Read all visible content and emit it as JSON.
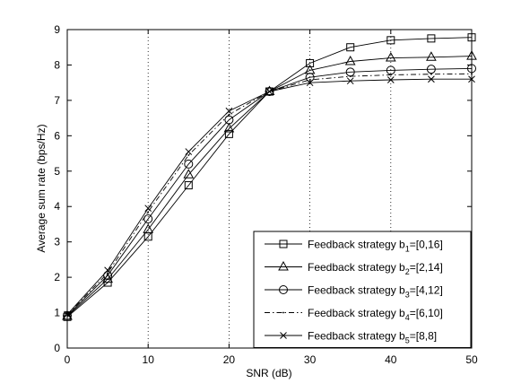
{
  "chart_data": {
    "type": "line",
    "title": "",
    "xlabel": "SNR (dB)",
    "ylabel": "Average sum rate (bps/Hz)",
    "xlim": [
      0,
      50
    ],
    "ylim": [
      0,
      9
    ],
    "xticks": [
      0,
      10,
      20,
      30,
      40,
      50
    ],
    "yticks": [
      0,
      1,
      2,
      3,
      4,
      5,
      6,
      7,
      8,
      9
    ],
    "vertical_dotted_grid_at_x": [
      10,
      20,
      30,
      40
    ],
    "legend_position": "bottom-right",
    "x": [
      0,
      5,
      10,
      15,
      20,
      25,
      30,
      35,
      40,
      45,
      50
    ],
    "series": [
      {
        "label_main": "Feedback strategy b",
        "sub": "1",
        "label_tail": "=[0,16]",
        "marker": "square",
        "line": "solid",
        "values": [
          0.88,
          1.85,
          3.15,
          4.6,
          6.05,
          7.25,
          8.05,
          8.5,
          8.7,
          8.75,
          8.78
        ]
      },
      {
        "label_main": "Feedback strategy b",
        "sub": "2",
        "label_tail": "=[2,14]",
        "marker": "triangle",
        "line": "solid",
        "values": [
          0.9,
          1.95,
          3.35,
          4.9,
          6.2,
          7.25,
          7.85,
          8.1,
          8.2,
          8.22,
          8.25
        ]
      },
      {
        "label_main": "Feedback strategy b",
        "sub": "3",
        "label_tail": "=[4,12]",
        "marker": "circle",
        "line": "solid",
        "values": [
          0.92,
          2.05,
          3.65,
          5.2,
          6.45,
          7.25,
          7.65,
          7.8,
          7.85,
          7.88,
          7.9
        ]
      },
      {
        "label_main": "Feedback strategy b",
        "sub": "4",
        "label_tail": "=[6,10]",
        "marker": "dot",
        "line": "dashdot",
        "values": [
          0.94,
          2.12,
          3.85,
          5.45,
          6.6,
          7.25,
          7.58,
          7.68,
          7.72,
          7.74,
          7.75
        ]
      },
      {
        "label_main": "Feedback strategy b",
        "sub": "5",
        "label_tail": "=[8,8]",
        "marker": "x",
        "line": "solid",
        "values": [
          0.95,
          2.2,
          3.95,
          5.55,
          6.7,
          7.25,
          7.5,
          7.55,
          7.58,
          7.6,
          7.6
        ]
      }
    ]
  }
}
